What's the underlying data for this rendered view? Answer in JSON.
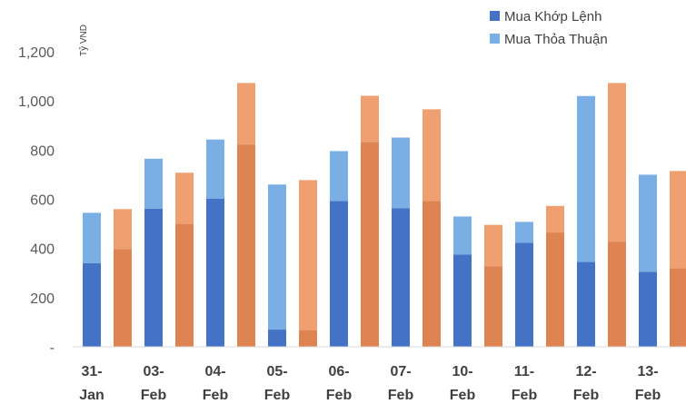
{
  "chart_data": {
    "type": "bar",
    "stacked": true,
    "ylabel": "Tỷ VND",
    "ylim": [
      0,
      1200
    ],
    "yticks": [
      {
        "value": 0,
        "label": "-"
      },
      {
        "value": 200,
        "label": "200"
      },
      {
        "value": 400,
        "label": "400"
      },
      {
        "value": 600,
        "label": "600"
      },
      {
        "value": 800,
        "label": "800"
      },
      {
        "value": 1000,
        "label": "1,000"
      },
      {
        "value": 1200,
        "label": "1,200"
      }
    ],
    "categories": [
      [
        "31-",
        "Jan"
      ],
      [
        "03-",
        "Feb"
      ],
      [
        "04-",
        "Feb"
      ],
      [
        "05-",
        "Feb"
      ],
      [
        "06-",
        "Feb"
      ],
      [
        "07-",
        "Feb"
      ],
      [
        "10-",
        "Feb"
      ],
      [
        "11-",
        "Feb"
      ],
      [
        "12-",
        "Feb"
      ],
      [
        "13-",
        "Feb"
      ]
    ],
    "legend": {
      "position": "top-right",
      "entries": [
        {
          "label": "Mua Khớp Lệnh",
          "color": "#4472C4"
        },
        {
          "label": "Mua Thỏa Thuận",
          "color": "#7AAFE5"
        }
      ]
    },
    "series": [
      {
        "name": "Mua Khớp Lệnh",
        "group": "buy",
        "color": "#4472C4",
        "values": [
          340,
          562,
          603,
          70,
          593,
          563,
          375,
          423,
          345,
          305
        ]
      },
      {
        "name": "Mua Thỏa Thuận",
        "group": "buy",
        "color": "#7AAFE5",
        "values": [
          205,
          203,
          240,
          590,
          203,
          288,
          155,
          85,
          675,
          395
        ]
      },
      {
        "group": "sell",
        "color": "#DD8452",
        "values": [
          398,
          500,
          823,
          68,
          833,
          593,
          328,
          465,
          428,
          320
        ]
      },
      {
        "group": "sell",
        "color": "#F0A070",
        "values": [
          162,
          208,
          250,
          610,
          188,
          373,
          168,
          108,
          645,
          395
        ]
      }
    ]
  }
}
